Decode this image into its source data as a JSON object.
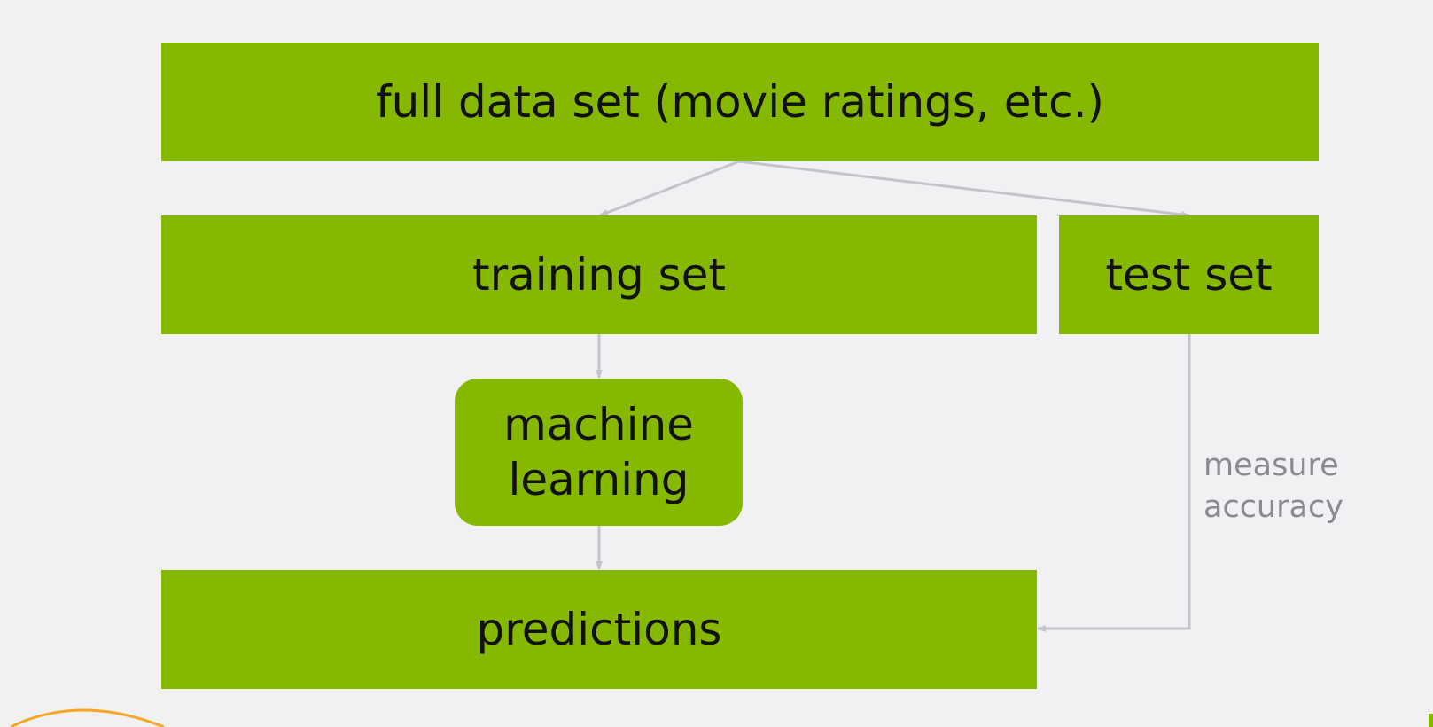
{
  "diagram": {
    "nodes": {
      "full_data_set": "full data set (movie ratings, etc.)",
      "training_set": "training set",
      "test_set": "test set",
      "machine_learning": [
        "machine",
        "learning"
      ],
      "predictions": "predictions"
    },
    "edge_label": [
      "measure",
      "accuracy"
    ],
    "colors": {
      "node_fill": "#86b800",
      "node_text": "#111111",
      "connector": "#c3c3cb",
      "edge_label": "#8a8a92",
      "background": "#f1f1f3",
      "accent": "#f5a623"
    }
  }
}
